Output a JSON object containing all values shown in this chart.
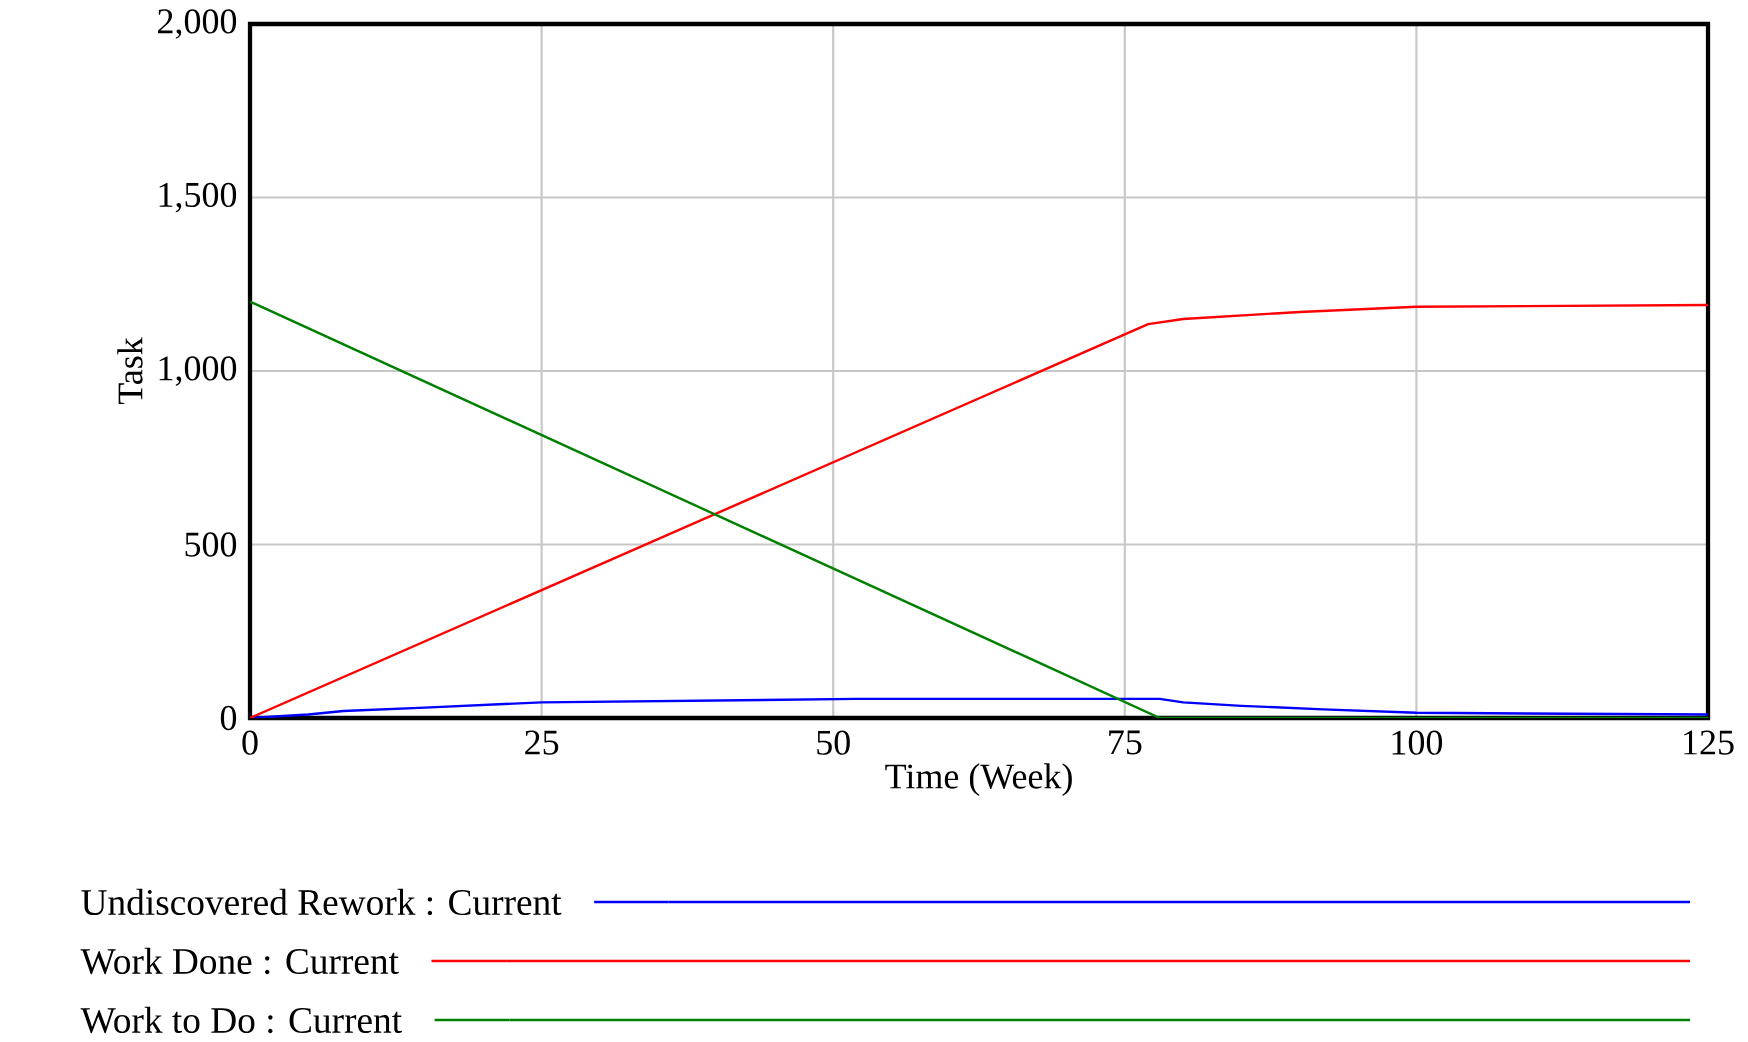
{
  "chart_data": {
    "type": "line",
    "xlabel": "Time (Week)",
    "ylabel": "Task",
    "xlim": [
      0,
      125
    ],
    "ylim": [
      0,
      2000
    ],
    "xticks": [
      0,
      25,
      50,
      75,
      100,
      125
    ],
    "yticks": [
      0,
      500,
      {
        "value": 1000,
        "label": "1,000"
      },
      {
        "value": 1500,
        "label": "1,500"
      },
      {
        "value": 2000,
        "label": "2,000"
      }
    ],
    "grid": true,
    "legend": "bottom",
    "marker": "none",
    "line_style": "solid",
    "series": [
      {
        "name": "Undiscovered Rework : Current",
        "color": "#0000ff",
        "x": [
          0,
          5,
          8,
          15,
          25,
          52,
          78,
          80,
          85,
          92,
          100,
          125
        ],
        "values": [
          0,
          10,
          20,
          30,
          45,
          55,
          55,
          45,
          35,
          25,
          15,
          10
        ]
      },
      {
        "name": "Work Done : Current",
        "color": "#ff0000",
        "x": [
          0,
          77,
          80,
          90,
          100,
          125
        ],
        "values": [
          0,
          1135,
          1150,
          1170,
          1185,
          1190
        ]
      },
      {
        "name": "Work to Do : Current",
        "color": "#008000",
        "x": [
          0,
          78,
          125
        ],
        "values": [
          1200,
          0,
          0
        ]
      }
    ]
  }
}
